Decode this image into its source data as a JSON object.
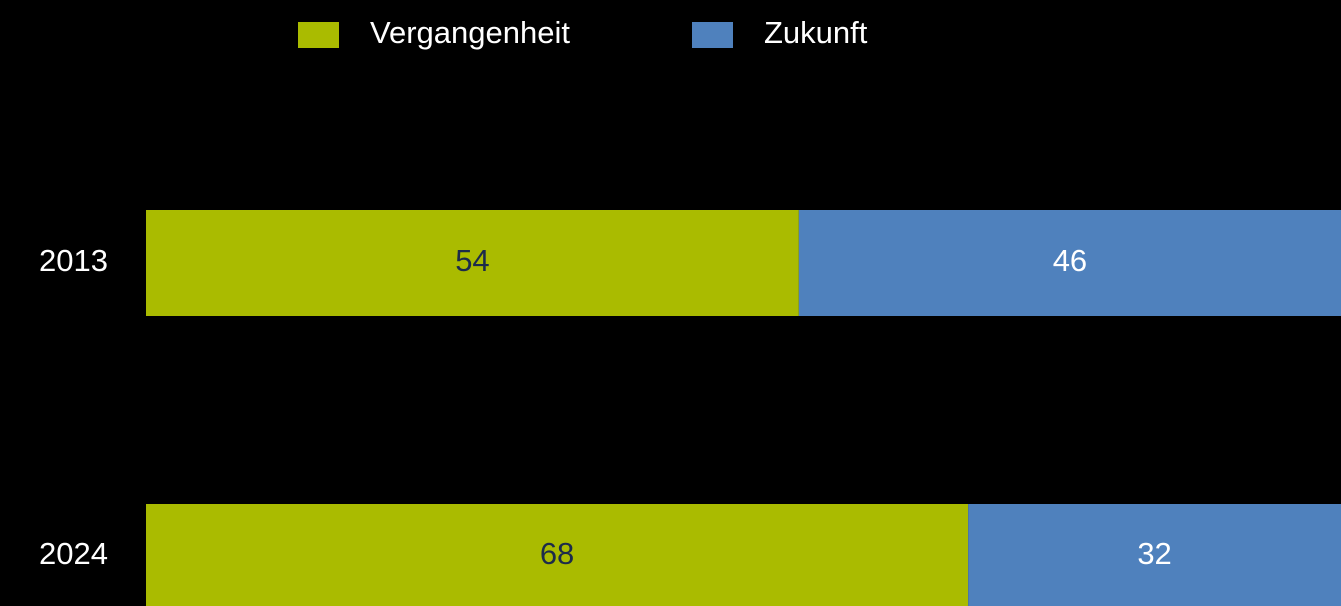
{
  "chart_data": {
    "type": "stacked_barh",
    "categories": [
      "2013",
      "2024"
    ],
    "series": [
      {
        "name": "Vergangenheit",
        "color": "#aabb00",
        "values": [
          54,
          68
        ]
      },
      {
        "name": "Zukunft",
        "color": "#4f81bd",
        "values": [
          46,
          32
        ]
      }
    ],
    "xlim": [
      0,
      100
    ]
  }
}
